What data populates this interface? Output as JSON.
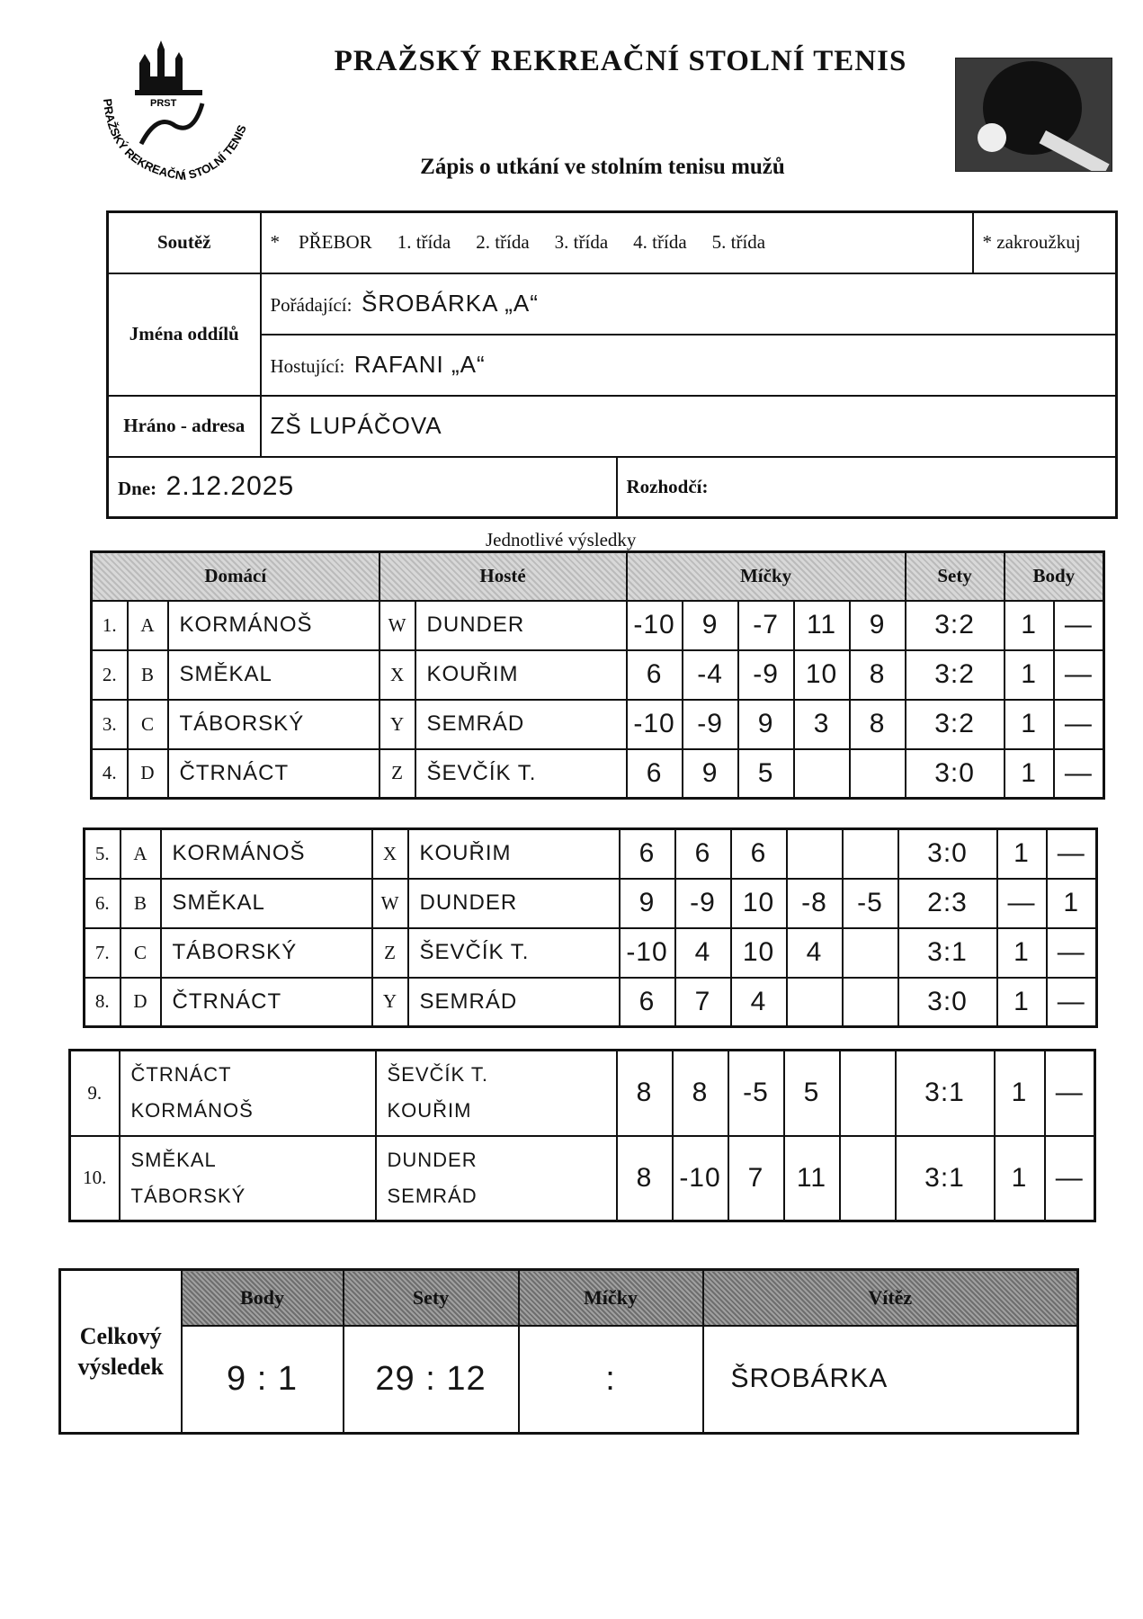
{
  "header": {
    "title": "PRAŽSKÝ REKREAČNÍ STOLNÍ TENIS",
    "subtitle": "Zápis o utkání ve stolním tenisu mužů",
    "logo_text": "PRAŽSKÝ REKREAČNÍ STOLNÍ TENIS",
    "logo_abbr": "PRST"
  },
  "info": {
    "soutez_label": "Soutěž",
    "star": "*",
    "options": [
      "PŘEBOR",
      "1. třída",
      "2. třída",
      "3. třída",
      "4. třída",
      "5. třída"
    ],
    "circle_note": "* zakroužkuj",
    "jmena_label": "Jména oddílů",
    "poradajici_label": "Pořádající:",
    "poradajici": "ŠROBÁRKA „A“",
    "hostujici_label": "Hostující:",
    "hostujici": "RAFANI „A“",
    "hrano_label": "Hráno - adresa",
    "adresa": "ZŠ LUPÁČOVA",
    "dne_label": "Dne:",
    "datum": "2.12.2025",
    "rozhodci_label": "Rozhodčí:",
    "rozhodci": ""
  },
  "singles": {
    "title": "Jednotlivé výsledky",
    "headers": {
      "home": "Domácí",
      "guest": "Hosté",
      "balls": "Míčky",
      "sets": "Sety",
      "points": "Body"
    },
    "rows": [
      {
        "no": "1.",
        "hl": "A",
        "home": "KORMÁNOŠ",
        "gl": "W",
        "guest": "DUNDER",
        "balls": [
          "-10",
          "9",
          "-7",
          "11",
          "9"
        ],
        "sets": "3:2",
        "ph": "1",
        "pg": "—"
      },
      {
        "no": "2.",
        "hl": "B",
        "home": "SMĚKAL",
        "gl": "X",
        "guest": "KOUŘIM",
        "balls": [
          "6",
          "-4",
          "-9",
          "10",
          "8"
        ],
        "sets": "3:2",
        "ph": "1",
        "pg": "—"
      },
      {
        "no": "3.",
        "hl": "C",
        "home": "TÁBORSKÝ",
        "gl": "Y",
        "guest": "SEMRÁD",
        "balls": [
          "-10",
          "-9",
          "9",
          "3",
          "8"
        ],
        "sets": "3:2",
        "ph": "1",
        "pg": "—"
      },
      {
        "no": "4.",
        "hl": "D",
        "home": "ČTRNÁCT",
        "gl": "Z",
        "guest": "ŠEVČÍK T.",
        "balls": [
          "6",
          "9",
          "5",
          "",
          ""
        ],
        "sets": "3:0",
        "ph": "1",
        "pg": "—"
      }
    ],
    "rows2": [
      {
        "no": "5.",
        "hl": "A",
        "home": "KORMÁNOŠ",
        "gl": "X",
        "guest": "KOUŘIM",
        "balls": [
          "6",
          "6",
          "6",
          "",
          ""
        ],
        "sets": "3:0",
        "ph": "1",
        "pg": "—"
      },
      {
        "no": "6.",
        "hl": "B",
        "home": "SMĚKAL",
        "gl": "W",
        "guest": "DUNDER",
        "balls": [
          "9",
          "-9",
          "10",
          "-8",
          "-5"
        ],
        "sets": "2:3",
        "ph": "—",
        "pg": "1"
      },
      {
        "no": "7.",
        "hl": "C",
        "home": "TÁBORSKÝ",
        "gl": "Z",
        "guest": "ŠEVČÍK T.",
        "balls": [
          "-10",
          "4",
          "10",
          "4",
          ""
        ],
        "sets": "3:1",
        "ph": "1",
        "pg": "—"
      },
      {
        "no": "8.",
        "hl": "D",
        "home": "ČTRNÁCT",
        "gl": "Y",
        "guest": "SEMRÁD",
        "balls": [
          "6",
          "7",
          "4",
          "",
          ""
        ],
        "sets": "3:0",
        "ph": "1",
        "pg": "—"
      }
    ]
  },
  "doubles": {
    "rows": [
      {
        "no": "9.",
        "home": [
          "ČTRNÁCT",
          "KORMÁNOŠ"
        ],
        "guest": [
          "ŠEVČÍK T.",
          "KOUŘIM"
        ],
        "balls": [
          "8",
          "8",
          "-5",
          "5",
          ""
        ],
        "sets": "3:1",
        "ph": "1",
        "pg": "—"
      },
      {
        "no": "10.",
        "home": [
          "SMĚKAL",
          "TÁBORSKÝ"
        ],
        "guest": [
          "DUNDER",
          "SEMRÁD"
        ],
        "balls": [
          "8",
          "-10",
          "7",
          "11",
          ""
        ],
        "sets": "3:1",
        "ph": "1",
        "pg": "—"
      }
    ]
  },
  "summary": {
    "label": "Celkový výsledek",
    "headers": [
      "Body",
      "Sety",
      "Míčky",
      "Vítěz"
    ],
    "body": "9 : 1",
    "sety": "29 : 12",
    "micky": ":",
    "vitez": "ŠROBÁRKA"
  }
}
